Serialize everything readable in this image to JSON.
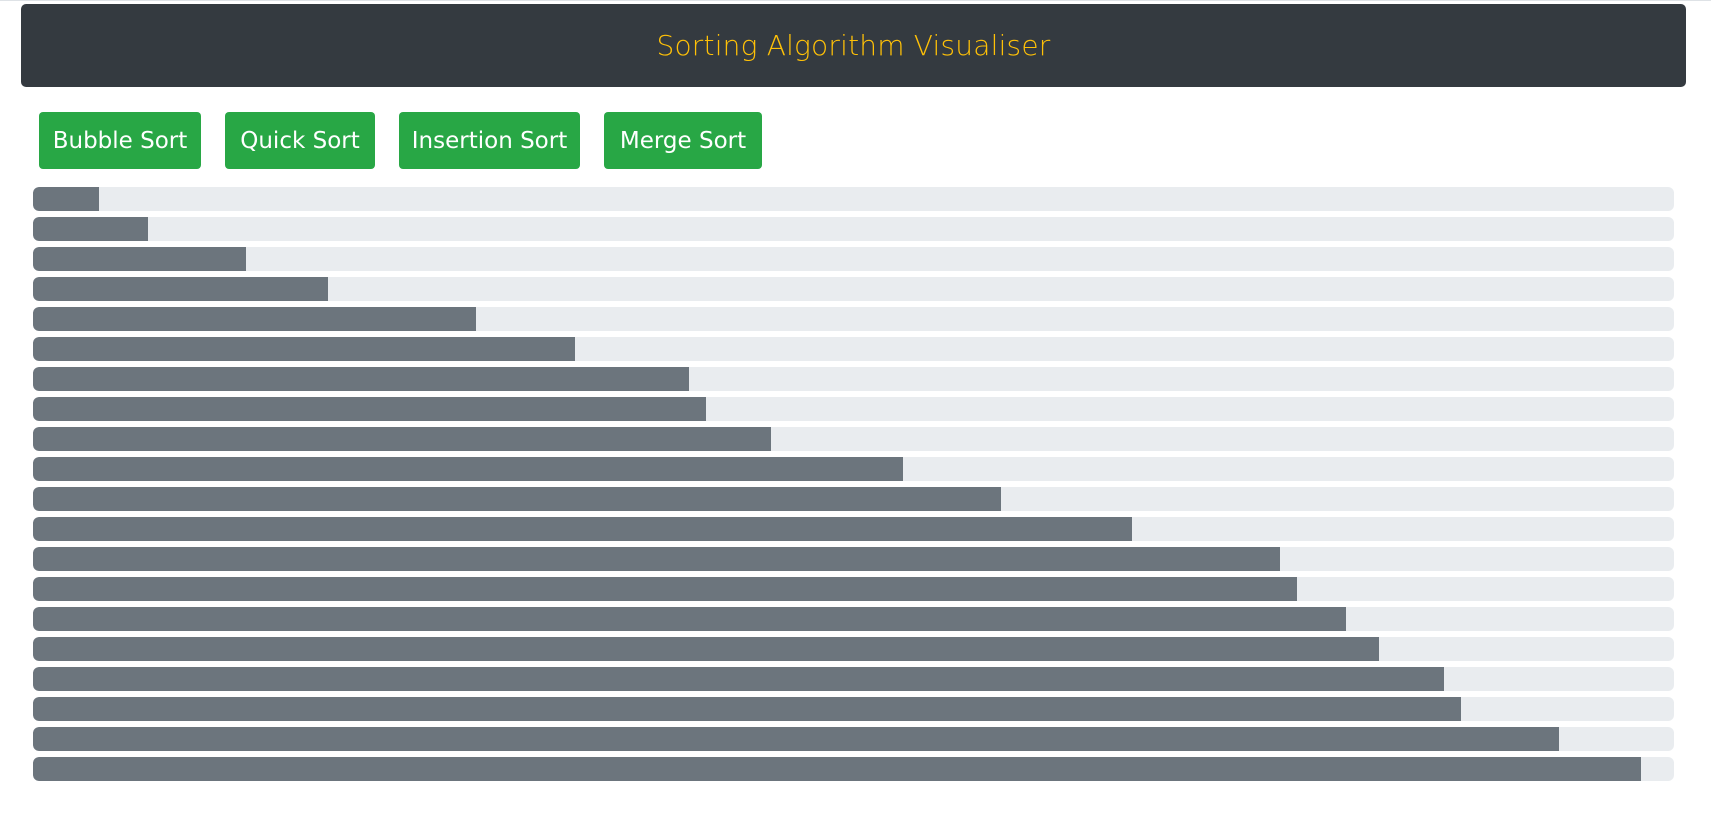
{
  "header": {
    "title": "Sorting Algorithm Visualiser"
  },
  "toolbar": {
    "bubble_sort_label": "Bubble Sort",
    "quick_sort_label": "Quick Sort",
    "insertion_sort_label": "Insertion Sort",
    "merge_sort_label": "Merge Sort"
  },
  "colors": {
    "header_background": "#343a40",
    "header_text": "#ffc107",
    "button_background": "#28a745",
    "button_text": "#ffffff",
    "bar_track": "#e9ecef",
    "bar_fill": "#6c757d"
  },
  "bars": {
    "max_value": 100,
    "values": [
      4,
      7,
      13,
      18,
      27,
      33,
      40,
      41,
      45,
      53,
      59,
      67,
      76,
      77,
      80,
      82,
      86,
      87,
      93,
      98
    ]
  }
}
